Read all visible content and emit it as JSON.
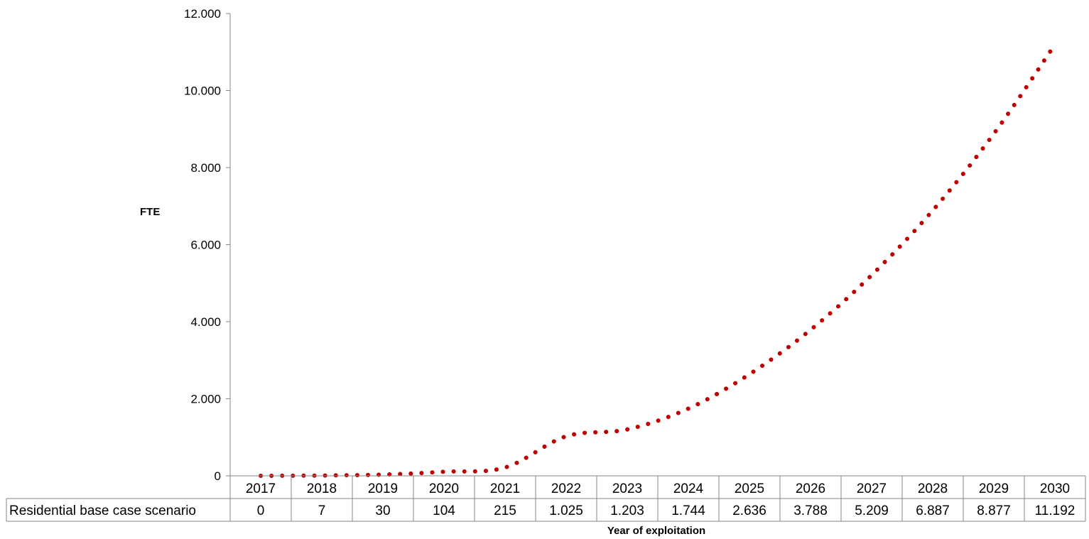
{
  "chart_data": {
    "type": "line",
    "line_style": "dotted",
    "ylabel": "FTE",
    "xlabel": "Year of exploitation",
    "ylim": [
      0,
      12000
    ],
    "y_ticks": [
      "0",
      "2.000",
      "4.000",
      "6.000",
      "8.000",
      "10.000",
      "12.000"
    ],
    "grid": false,
    "categories": [
      "2017",
      "2018",
      "2019",
      "2020",
      "2021",
      "2022",
      "2023",
      "2024",
      "2025",
      "2026",
      "2027",
      "2028",
      "2029",
      "2030"
    ],
    "series": [
      {
        "name": "Residential base case scenario",
        "color": "#c00000",
        "values": [
          0,
          7,
          30,
          104,
          215,
          1025,
          1203,
          1744,
          2636,
          3788,
          5209,
          6887,
          8877,
          11192
        ],
        "labels": [
          "0",
          "7",
          "30",
          "104",
          "215",
          "1.025",
          "1.203",
          "1.744",
          "2.636",
          "3.788",
          "5.209",
          "6.887",
          "8.877",
          "11.192"
        ]
      }
    ]
  }
}
